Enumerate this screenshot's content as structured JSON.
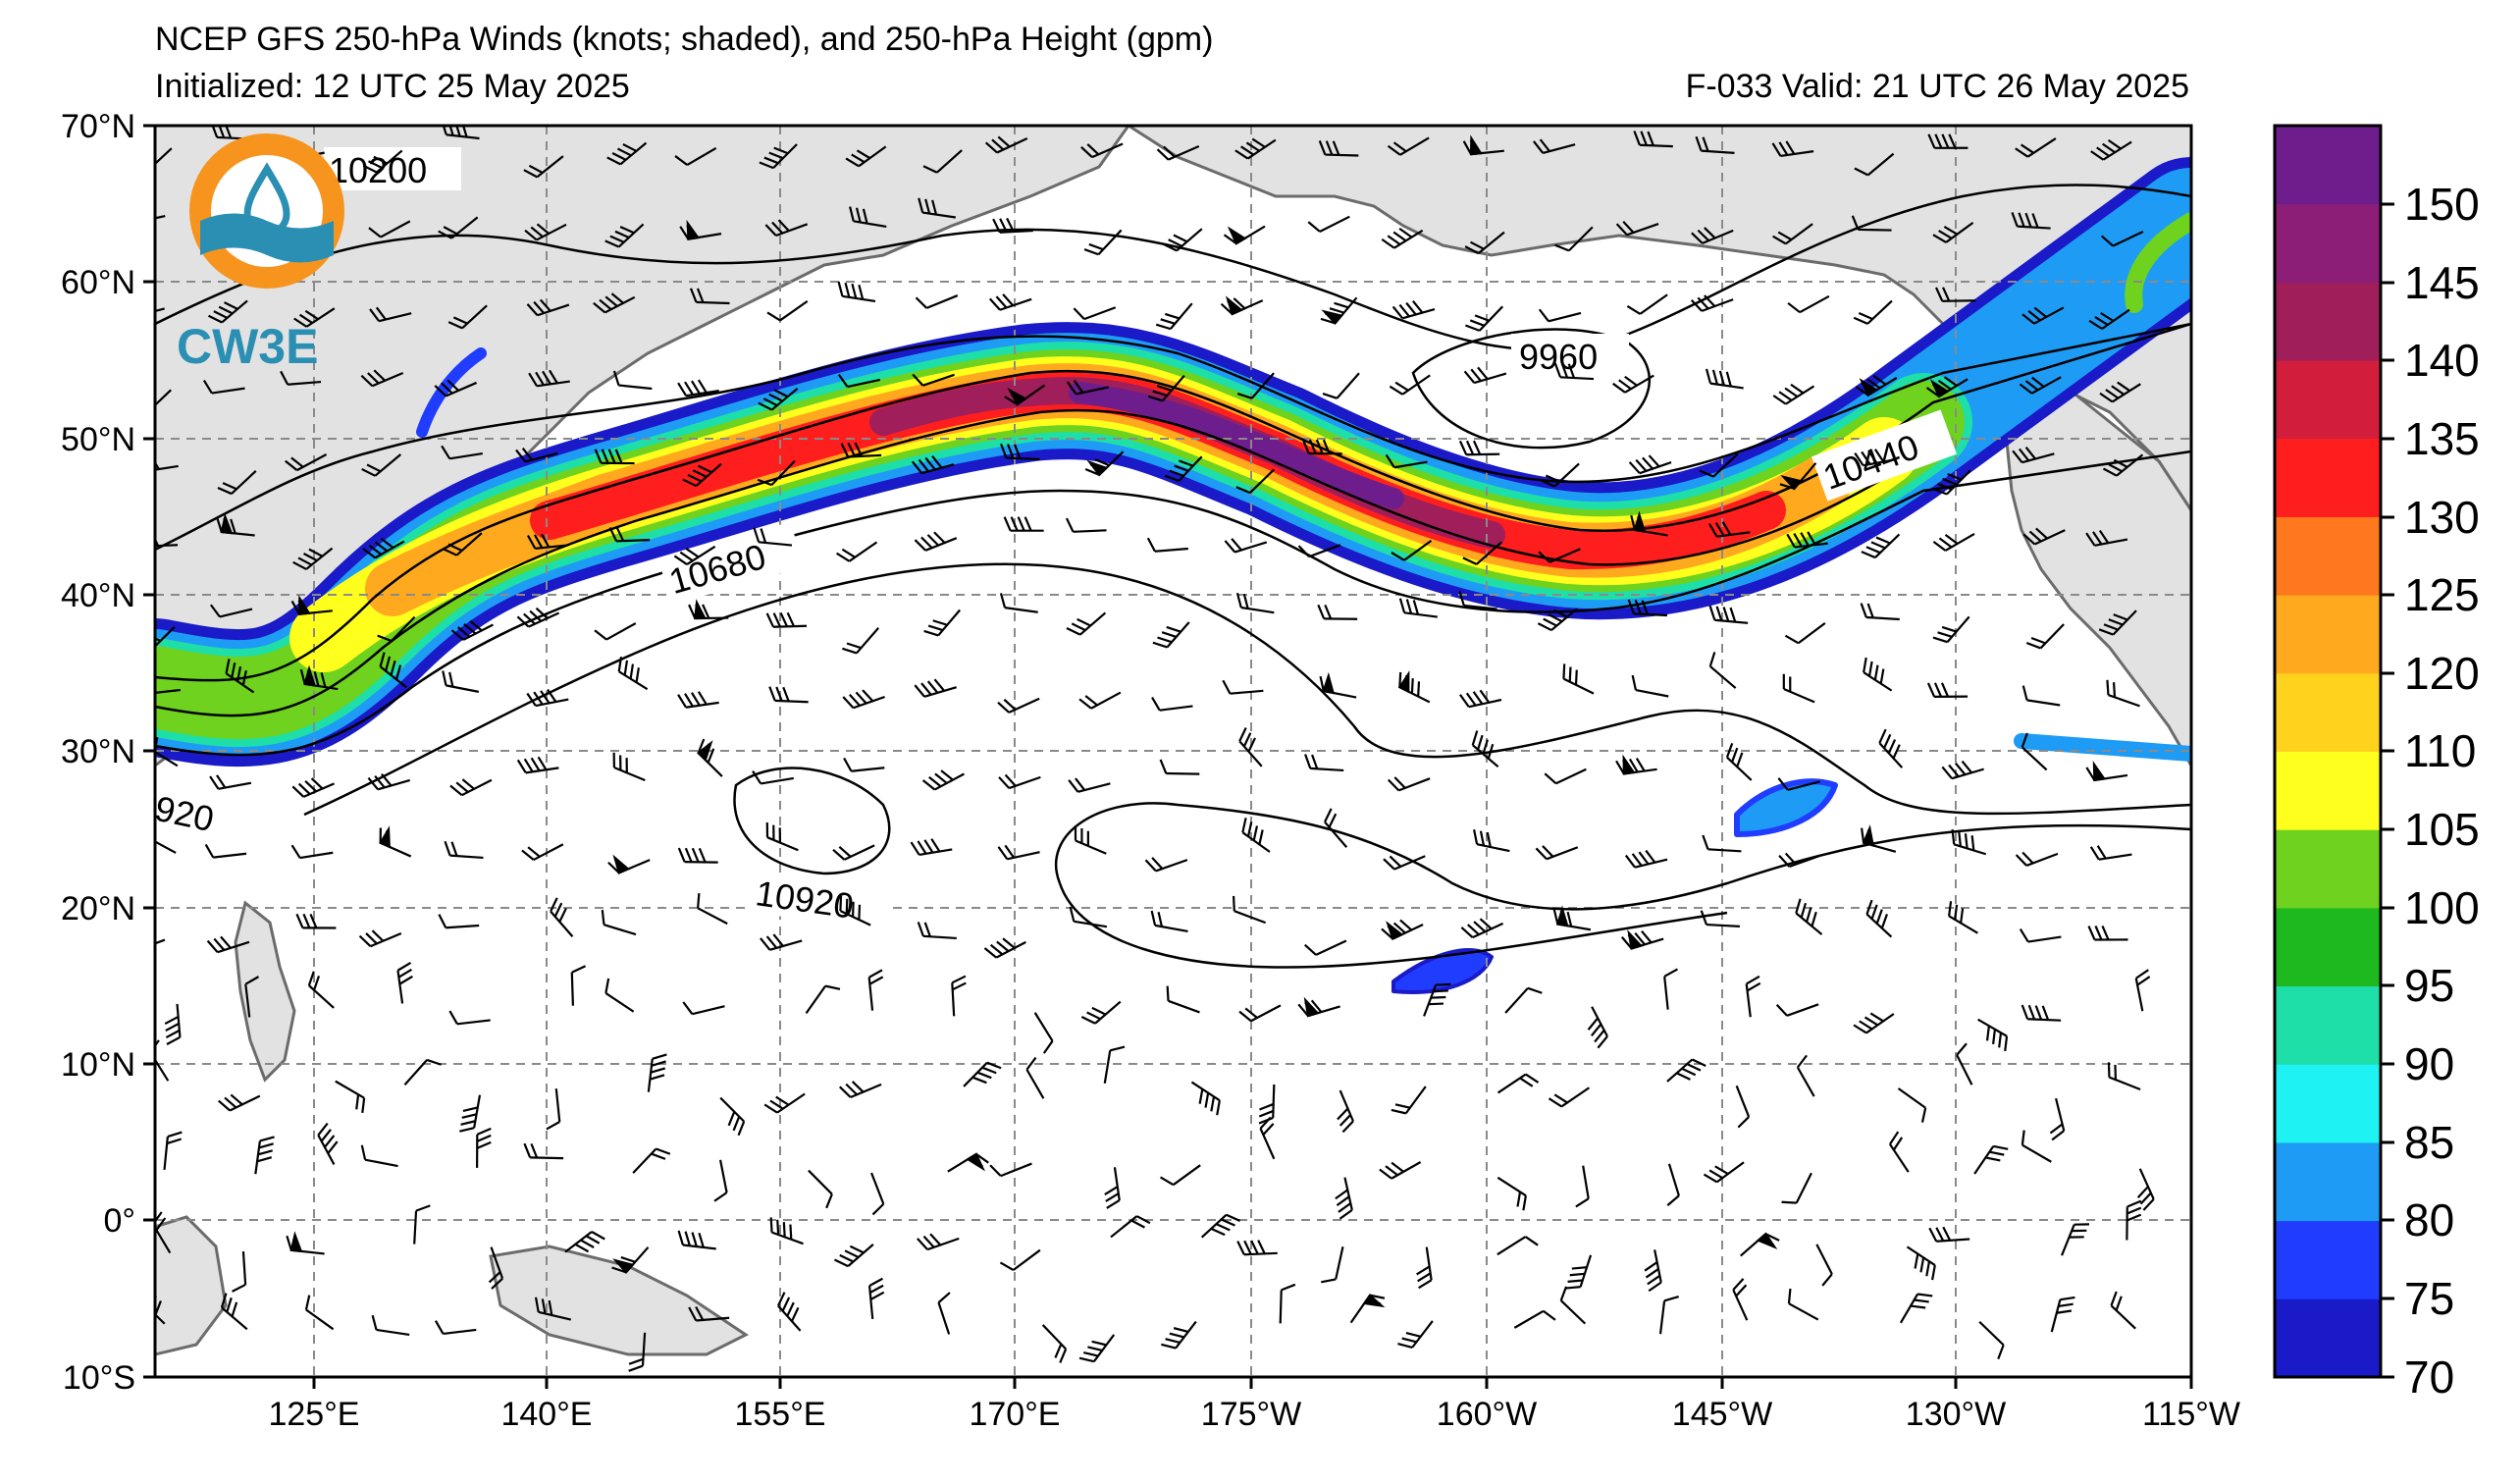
{
  "header": {
    "title": "NCEP GFS 250-hPa Winds (knots; shaded), and 250-hPa Height (gpm)",
    "initialized": "Initialized: 12 UTC 25 May 2025",
    "valid": "F-033  Valid: 21 UTC 26 May 2025"
  },
  "logo": {
    "text": "CW3E",
    "ring_color": "#f7941d",
    "wave_color": "#2a8fb3"
  },
  "map": {
    "lat_labels": [
      "70°N",
      "60°N",
      "50°N",
      "40°N",
      "30°N",
      "20°N",
      "10°N",
      "0°",
      "10°S"
    ],
    "lon_labels": [
      "125°E",
      "140°E",
      "155°E",
      "170°E",
      "175°W",
      "160°W",
      "145°W",
      "130°W",
      "115°W"
    ],
    "contour_labels": [
      "10200",
      "9960",
      "10440",
      "10680",
      "920",
      "10920"
    ]
  },
  "colorbar": {
    "tick_labels": [
      "150",
      "145",
      "140",
      "135",
      "130",
      "125",
      "120",
      "110",
      "105",
      "100",
      "95",
      "90",
      "85",
      "80",
      "75",
      "70"
    ],
    "colors": [
      "#1a1ac8",
      "#1f3cff",
      "#1e9cf5",
      "#1ef2f2",
      "#1edfa8",
      "#1eb91e",
      "#6ed21e",
      "#ffff1e",
      "#ffd21e",
      "#ffaa1e",
      "#ff781e",
      "#ff1e1e",
      "#d21e3c",
      "#a01e5a",
      "#8c1e78",
      "#6e1e8c"
    ]
  },
  "isotach_colors": {
    "c70": "#1a1ac8",
    "c80": "#1e9cf5",
    "c90": "#1edfa8",
    "c100": "#6ed21e",
    "c110": "#ffff1e",
    "c120": "#ffaa1e",
    "c130": "#ff1e1e",
    "c140": "#a01e5a",
    "c150": "#6e1e8c"
  }
}
